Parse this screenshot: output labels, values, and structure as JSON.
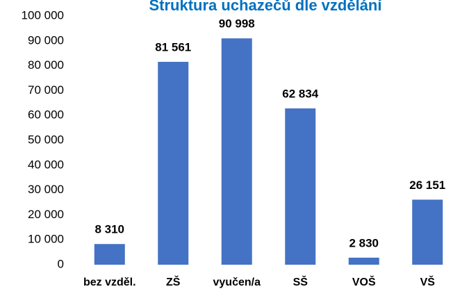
{
  "chart_data": {
    "type": "bar",
    "title": "Struktura uchazečů dle vzdělání",
    "categories": [
      "bez vzděl.",
      "ZŠ",
      "vyučen/a",
      "SŠ",
      "VOŠ",
      "VŠ"
    ],
    "values": [
      8310,
      81561,
      90998,
      62834,
      2830,
      26151
    ],
    "value_labels": [
      "8 310",
      "81 561",
      "90 998",
      "62 834",
      "2 830",
      "26 151"
    ],
    "color": "#4472c4",
    "ylim": [
      0,
      100000
    ],
    "yticks": [
      0,
      {
        "value": 10000,
        "label": "10 000"
      },
      {
        "value": 20000,
        "label": "20 000"
      },
      {
        "value": 30000,
        "label": "30 000"
      },
      {
        "value": 40000,
        "label": "40 000"
      },
      {
        "value": 50000,
        "label": "50 000"
      },
      {
        "value": 60000,
        "label": "60 000"
      },
      {
        "value": 70000,
        "label": "70 000"
      },
      {
        "value": 80000,
        "label": "80 000"
      },
      {
        "value": 90000,
        "label": "90 000"
      },
      {
        "value": 100000,
        "label": "100 000"
      }
    ],
    "grid": false
  }
}
